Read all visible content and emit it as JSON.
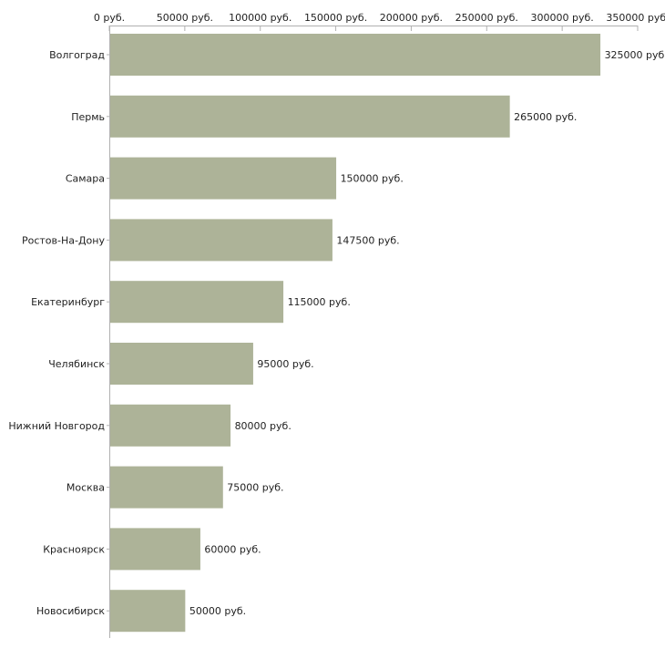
{
  "chart_data": {
    "type": "bar",
    "orientation": "horizontal",
    "title": "",
    "xlabel": "",
    "ylabel": "",
    "unit": "руб.",
    "xlim": [
      0,
      350000
    ],
    "x_ticks": [
      0,
      50000,
      100000,
      150000,
      200000,
      250000,
      300000,
      350000
    ],
    "x_tick_labels": [
      "0 руб.",
      "50000 руб.",
      "100000 руб.",
      "150000 руб.",
      "200000 руб.",
      "250000 руб.",
      "300000 руб.",
      "350000 руб."
    ],
    "categories": [
      "Волгоград",
      "Пермь",
      "Самара",
      "Ростов-На-Дону",
      "Екатеринбург",
      "Челябинск",
      "Нижний Новгород",
      "Москва",
      "Красноярск",
      "Новосибирск"
    ],
    "values": [
      325000,
      265000,
      150000,
      147500,
      115000,
      95000,
      80000,
      75000,
      60000,
      50000
    ],
    "value_labels": [
      "325000 руб.",
      "265000 руб.",
      "150000 руб.",
      "147500 руб.",
      "115000 руб.",
      "95000 руб.",
      "80000 руб.",
      "75000 руб.",
      "60000 руб.",
      "50000 руб."
    ],
    "grid": false,
    "legend": "none",
    "bar_color": "#adb398",
    "axis_color": "#b0b0b0"
  }
}
